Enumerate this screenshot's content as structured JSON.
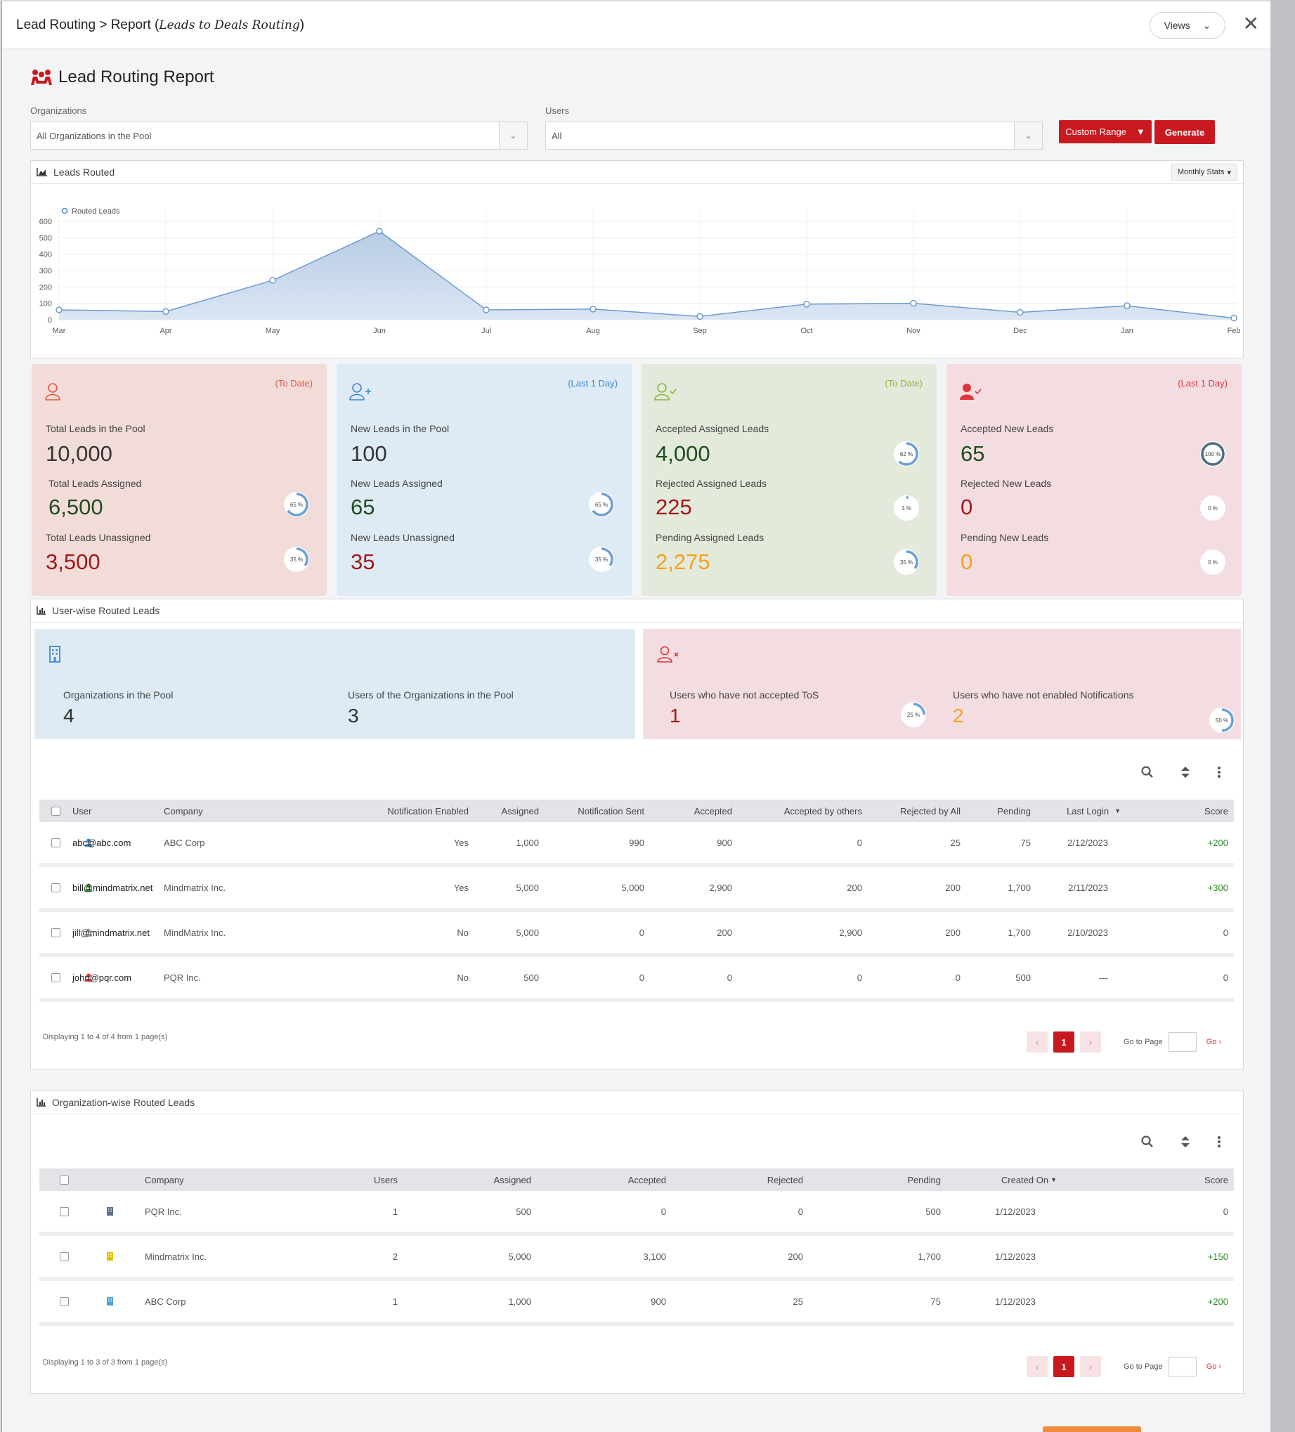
{
  "header": {
    "title_main": "Lead Routing > Report (",
    "title_italic": "Leads to Deals Routing",
    "title_end": ")",
    "views_label": "Views"
  },
  "page": {
    "title": "Lead Routing Report"
  },
  "filters": {
    "organizations_label": "Organizations",
    "organizations_value": "All Organizations in the Pool",
    "users_label": "Users",
    "users_value": "All",
    "custom_range_label": "Custom Range",
    "generate_label": "Generate"
  },
  "leads_chart": {
    "panel_title": "Leads Routed",
    "monthly_label": "Monthly Stats",
    "legend": "Routed Leads"
  },
  "chart_data": {
    "type": "area",
    "categories": [
      "Mar",
      "Apr",
      "May",
      "Jun",
      "Jul",
      "Aug",
      "Sep",
      "Oct",
      "Nov",
      "Dec",
      "Jan",
      "Feb"
    ],
    "series": [
      {
        "name": "Routed Leads",
        "values": [
          60,
          50,
          240,
          540,
          60,
          65,
          20,
          95,
          100,
          45,
          85,
          10
        ]
      }
    ],
    "yticks": [
      0,
      100,
      200,
      300,
      400,
      500,
      600
    ],
    "ylim": [
      0,
      600
    ],
    "grid": true,
    "legend_position": "top-left"
  },
  "cards": [
    {
      "period": "(To Date)",
      "color": "#e9573f",
      "rows": [
        {
          "label": "Total Leads in the Pool",
          "value": "10,000"
        },
        {
          "label": "Total Leads Assigned",
          "value": "6,500",
          "pct": "65 %",
          "frac": 0.65
        },
        {
          "label": "Total Leads Unassigned",
          "value": "3,500",
          "pct": "35 %",
          "frac": 0.35
        }
      ]
    },
    {
      "period": "(Last 1 Day)",
      "color": "#3b86d6",
      "rows": [
        {
          "label": "New Leads in the Pool",
          "value": "100"
        },
        {
          "label": "New Leads Assigned",
          "value": "65",
          "pct": "65 %",
          "frac": 0.65
        },
        {
          "label": "New Leads Unassigned",
          "value": "35",
          "pct": "35 %",
          "frac": 0.35
        }
      ]
    },
    {
      "period": "(To Date)",
      "color": "#8cb33c",
      "rows": [
        {
          "label": "Accepted Assigned Leads",
          "value": "4,000",
          "pct": "62 %",
          "frac": 0.62
        },
        {
          "label": "Rejected Assigned Leads",
          "value": "225",
          "pct": "3 %",
          "frac": 0.03
        },
        {
          "label": "Pending Assigned Leads",
          "value": "2,275",
          "pct": "35 %",
          "frac": 0.35
        }
      ]
    },
    {
      "period": "(Last 1 Day)",
      "color": "#e0353b",
      "rows": [
        {
          "label": "Accepted New Leads",
          "value": "65",
          "pct": "100 %",
          "frac": 1.0
        },
        {
          "label": "Rejected New Leads",
          "value": "0",
          "pct": "0 %",
          "frac": 0
        },
        {
          "label": "Pending New Leads",
          "value": "0",
          "pct": "0 %",
          "frac": 0
        }
      ]
    }
  ],
  "userwise": {
    "panel_title": "User-wise Routed Leads",
    "orgs_label": "Organizations in the Pool",
    "orgs_value": "4",
    "users_label": "Users of the Organizations in the Pool",
    "users_value": "3",
    "tos_label": "Users who have not accepted ToS",
    "tos_value": "1",
    "tos_pct": "25 %",
    "tos_frac": 0.25,
    "notif_label": "Users who have not enabled Notifications",
    "notif_value": "2",
    "notif_pct": "50 %",
    "notif_frac": 0.5,
    "columns": [
      "User",
      "Company",
      "Notification Enabled",
      "Assigned",
      "Notification Sent",
      "Accepted",
      "Accepted by others",
      "Rejected by All",
      "Pending",
      "Last Login",
      "Score"
    ],
    "rows": [
      {
        "user": "abc@abc.com",
        "icon_color": "#2f8fd8",
        "company": "ABC Corp",
        "notif": "Yes",
        "assigned": "1,000",
        "sent": "990",
        "accepted": "900",
        "acc_others": "0",
        "rejected": "25",
        "pending": "75",
        "last_login": "2/12/2023",
        "score": "+200"
      },
      {
        "user": "bill@mindmatrix.net",
        "icon_color": "#2e9e3e",
        "company": "Mindmatrix Inc.",
        "notif": "Yes",
        "assigned": "5,000",
        "sent": "5,000",
        "accepted": "2,900",
        "acc_others": "200",
        "rejected": "200",
        "pending": "1,700",
        "last_login": "2/11/2023",
        "score": "+300"
      },
      {
        "user": "jill@mindmatrix.net",
        "icon_color": "#aaaaaa",
        "company": "MindMatrix Inc.",
        "notif": "No",
        "assigned": "5,000",
        "sent": "0",
        "accepted": "200",
        "acc_others": "2,900",
        "rejected": "200",
        "pending": "1,700",
        "last_login": "2/10/2023",
        "score": "0"
      },
      {
        "user": "john@pqr.com",
        "icon_color": "#d9363e",
        "company": "PQR Inc.",
        "notif": "No",
        "assigned": "500",
        "sent": "0",
        "accepted": "0",
        "acc_others": "0",
        "rejected": "0",
        "pending": "500",
        "last_login": "---",
        "score": "0"
      }
    ],
    "footer": "Displaying 1 to 4 of 4 from 1 page(s)",
    "page": "1",
    "goto_label": "Go to Page",
    "go_label": "Go"
  },
  "orgwise": {
    "panel_title": "Organization-wise Routed Leads",
    "columns": [
      "Company",
      "Users",
      "Assigned",
      "Accepted",
      "Rejected",
      "Pending",
      "Created On",
      "Score"
    ],
    "rows": [
      {
        "company": "PQR Inc.",
        "icon_color": "#5a6b8a",
        "users": "1",
        "assigned": "500",
        "accepted": "0",
        "rejected": "0",
        "pending": "500",
        "created": "1/12/2023",
        "score": "0"
      },
      {
        "company": "Mindmatrix Inc.",
        "icon_color": "#e6c000",
        "users": "2",
        "assigned": "5,000",
        "accepted": "3,100",
        "rejected": "200",
        "pending": "1,700",
        "created": "1/12/2023",
        "score": "+150"
      },
      {
        "company": "ABC Corp",
        "icon_color": "#4aa3df",
        "users": "1",
        "assigned": "1,000",
        "accepted": "900",
        "rejected": "25",
        "pending": "75",
        "created": "1/12/2023",
        "score": "+200"
      }
    ],
    "footer": "Displaying 1 to 3 of 3 from 1 page(s)",
    "page": "1",
    "goto_label": "Go to Page",
    "go_label": "Go"
  }
}
